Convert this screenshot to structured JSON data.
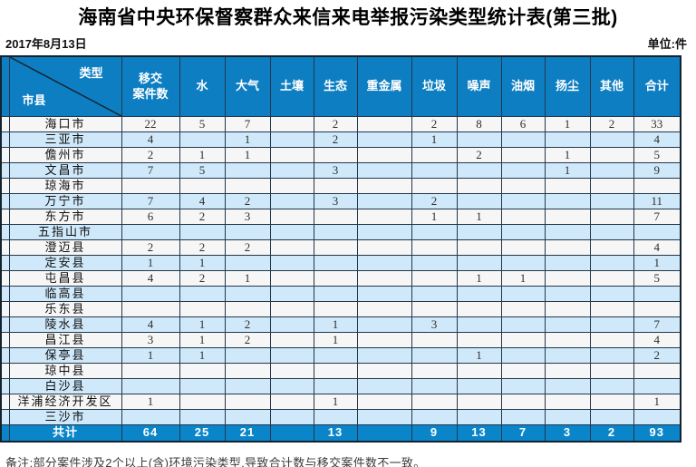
{
  "page": {
    "title": "海南省中央环保督察群众来信来电举报污染类型统计表(第三批)",
    "date": "2017年8月13日",
    "unit_label": "单位:件",
    "note": "备注:部分案件涉及2个以上(含)环境污染类型,导致合计数与移交案件数不一致。"
  },
  "colors": {
    "header_blue": "#0d7ec1",
    "total_blue": "#0a85ca",
    "row_light_blue": "#cfe9fa",
    "row_white": "#f6f6f6",
    "grid_line": "#24374a"
  },
  "chart_data": {
    "type": "table",
    "title": "海南省中央环保督察群众来信来电举报污染类型统计表(第三批)",
    "date": "2017年8月13日",
    "unit": "件",
    "corner": {
      "type_label": "类型",
      "region_label": "市县"
    },
    "columns": [
      "移交\n案件数",
      "水",
      "大气",
      "土壤",
      "生态",
      "重金属",
      "垃圾",
      "噪声",
      "油烟",
      "扬尘",
      "其他",
      "合计"
    ],
    "rows": [
      {
        "name": "海口市",
        "values": [
          "22",
          "5",
          "7",
          "",
          "2",
          "",
          "2",
          "8",
          "6",
          "1",
          "2",
          "33"
        ]
      },
      {
        "name": "三亚市",
        "values": [
          "4",
          "",
          "1",
          "",
          "2",
          "",
          "1",
          "",
          "",
          "",
          "",
          "4"
        ]
      },
      {
        "name": "儋州市",
        "values": [
          "2",
          "1",
          "1",
          "",
          "",
          "",
          "",
          "2",
          "",
          "1",
          "",
          "5"
        ]
      },
      {
        "name": "文昌市",
        "values": [
          "7",
          "5",
          "",
          "",
          "3",
          "",
          "",
          "",
          "",
          "1",
          "",
          "9"
        ]
      },
      {
        "name": "琼海市",
        "values": [
          "",
          "",
          "",
          "",
          "",
          "",
          "",
          "",
          "",
          "",
          "",
          ""
        ]
      },
      {
        "name": "万宁市",
        "values": [
          "7",
          "4",
          "2",
          "",
          "3",
          "",
          "2",
          "",
          "",
          "",
          "",
          "11"
        ]
      },
      {
        "name": "东方市",
        "values": [
          "6",
          "2",
          "3",
          "",
          "",
          "",
          "1",
          "1",
          "",
          "",
          "",
          "7"
        ]
      },
      {
        "name": "五指山市",
        "values": [
          "",
          "",
          "",
          "",
          "",
          "",
          "",
          "",
          "",
          "",
          "",
          ""
        ]
      },
      {
        "name": "澄迈县",
        "values": [
          "2",
          "2",
          "2",
          "",
          "",
          "",
          "",
          "",
          "",
          "",
          "",
          "4"
        ]
      },
      {
        "name": "定安县",
        "values": [
          "1",
          "1",
          "",
          "",
          "",
          "",
          "",
          "",
          "",
          "",
          "",
          "1"
        ]
      },
      {
        "name": "屯昌县",
        "values": [
          "4",
          "2",
          "1",
          "",
          "",
          "",
          "",
          "1",
          "1",
          "",
          "",
          "5"
        ]
      },
      {
        "name": "临高县",
        "values": [
          "",
          "",
          "",
          "",
          "",
          "",
          "",
          "",
          "",
          "",
          "",
          ""
        ]
      },
      {
        "name": "乐东县",
        "values": [
          "",
          "",
          "",
          "",
          "",
          "",
          "",
          "",
          "",
          "",
          "",
          ""
        ]
      },
      {
        "name": "陵水县",
        "values": [
          "4",
          "1",
          "2",
          "",
          "1",
          "",
          "3",
          "",
          "",
          "",
          "",
          "7"
        ]
      },
      {
        "name": "昌江县",
        "values": [
          "3",
          "1",
          "2",
          "",
          "1",
          "",
          "",
          "",
          "",
          "",
          "",
          "4"
        ]
      },
      {
        "name": "保亭县",
        "values": [
          "1",
          "1",
          "",
          "",
          "",
          "",
          "",
          "1",
          "",
          "",
          "",
          "2"
        ]
      },
      {
        "name": "琼中县",
        "values": [
          "",
          "",
          "",
          "",
          "",
          "",
          "",
          "",
          "",
          "",
          "",
          ""
        ]
      },
      {
        "name": "白沙县",
        "values": [
          "",
          "",
          "",
          "",
          "",
          "",
          "",
          "",
          "",
          "",
          "",
          ""
        ]
      },
      {
        "name": "洋浦经济开发区",
        "values": [
          "1",
          "",
          "",
          "",
          "1",
          "",
          "",
          "",
          "",
          "",
          "",
          "1"
        ]
      },
      {
        "name": "三沙市",
        "values": [
          "",
          "",
          "",
          "",
          "",
          "",
          "",
          "",
          "",
          "",
          "",
          ""
        ]
      }
    ],
    "total_row": {
      "name": "共计",
      "values": [
        "64",
        "25",
        "21",
        "",
        "13",
        "",
        "9",
        "13",
        "7",
        "3",
        "2",
        "93"
      ]
    }
  }
}
